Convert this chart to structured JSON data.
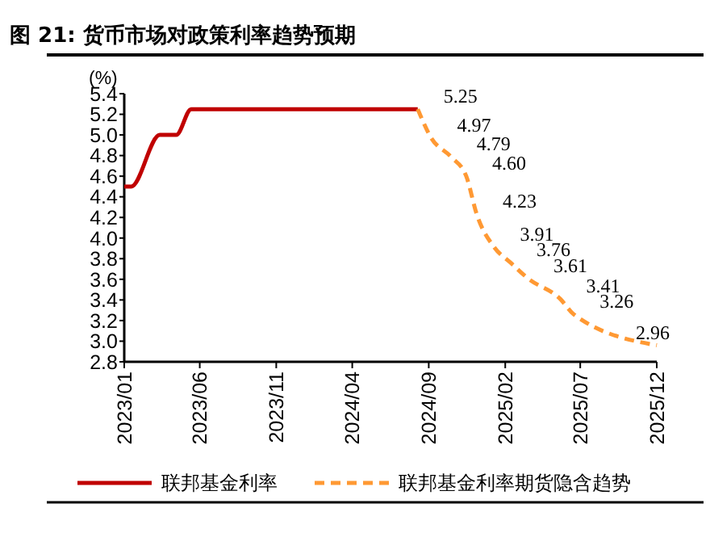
{
  "chart_data": {
    "type": "line",
    "title": "图 21: 货币市场对政策利率趋势预期",
    "ylabel": "(%)",
    "xlim": [
      "2023-01",
      "2025-12"
    ],
    "xticks": [
      {
        "value": "2023-01",
        "label": "2023/01"
      },
      {
        "value": "2023-06",
        "label": "2023/06"
      },
      {
        "value": "2023-11",
        "label": "2023/11"
      },
      {
        "value": "2024-04",
        "label": "2024/04"
      },
      {
        "value": "2024-09",
        "label": "2024/09"
      },
      {
        "value": "2025-02",
        "label": "2025/02"
      },
      {
        "value": "2025-07",
        "label": "2025/07"
      },
      {
        "value": "2025-12",
        "label": "2025/12"
      }
    ],
    "ylim": [
      2.8,
      5.4
    ],
    "yticks": [
      {
        "value": 2.8,
        "label": "2.8"
      },
      {
        "value": 3.0,
        "label": "3.0"
      },
      {
        "value": 3.2,
        "label": "3.2"
      },
      {
        "value": 3.4,
        "label": "3.4"
      },
      {
        "value": 3.6,
        "label": "3.6"
      },
      {
        "value": 3.8,
        "label": "3.8"
      },
      {
        "value": 4.0,
        "label": "4.0"
      },
      {
        "value": 4.2,
        "label": "4.2"
      },
      {
        "value": 4.4,
        "label": "4.4"
      },
      {
        "value": 4.6,
        "label": "4.6"
      },
      {
        "value": 4.8,
        "label": "4.8"
      },
      {
        "value": 5.0,
        "label": "5.0"
      },
      {
        "value": 5.2,
        "label": "5.2"
      },
      {
        "value": 5.4,
        "label": "5.4"
      }
    ],
    "series": [
      {
        "name": "联邦基金利率",
        "color": "#c00000",
        "line_style": "solid",
        "x": [
          "2023-01-01",
          "2023-01-15",
          "2023-03-13",
          "2023-04-15",
          "2023-05-15",
          "2024-08-10"
        ],
        "values": [
          4.5,
          4.5,
          5.0,
          5.0,
          5.25,
          5.25
        ]
      },
      {
        "name": "联邦基金利率期货隐含趋势",
        "color": "#ff9933",
        "line_style": "dashed",
        "x": [
          "2024-08-10",
          "2024-09-06",
          "2024-10-15",
          "2024-11-15",
          "2024-12-06",
          "2025-01-10",
          "2025-02-12",
          "2025-03-18",
          "2025-05-22",
          "2025-06-18",
          "2025-12-01"
        ],
        "values": [
          5.25,
          4.97,
          4.79,
          4.6,
          4.23,
          3.91,
          3.76,
          3.61,
          3.41,
          3.26,
          2.96
        ],
        "value_labels": [
          "5.25",
          "4.97",
          "4.79",
          "4.60",
          "4.23",
          "3.91",
          "3.76",
          "3.61",
          "3.41",
          "3.26",
          "2.96"
        ]
      }
    ],
    "legend": "bottom",
    "grid": false
  }
}
